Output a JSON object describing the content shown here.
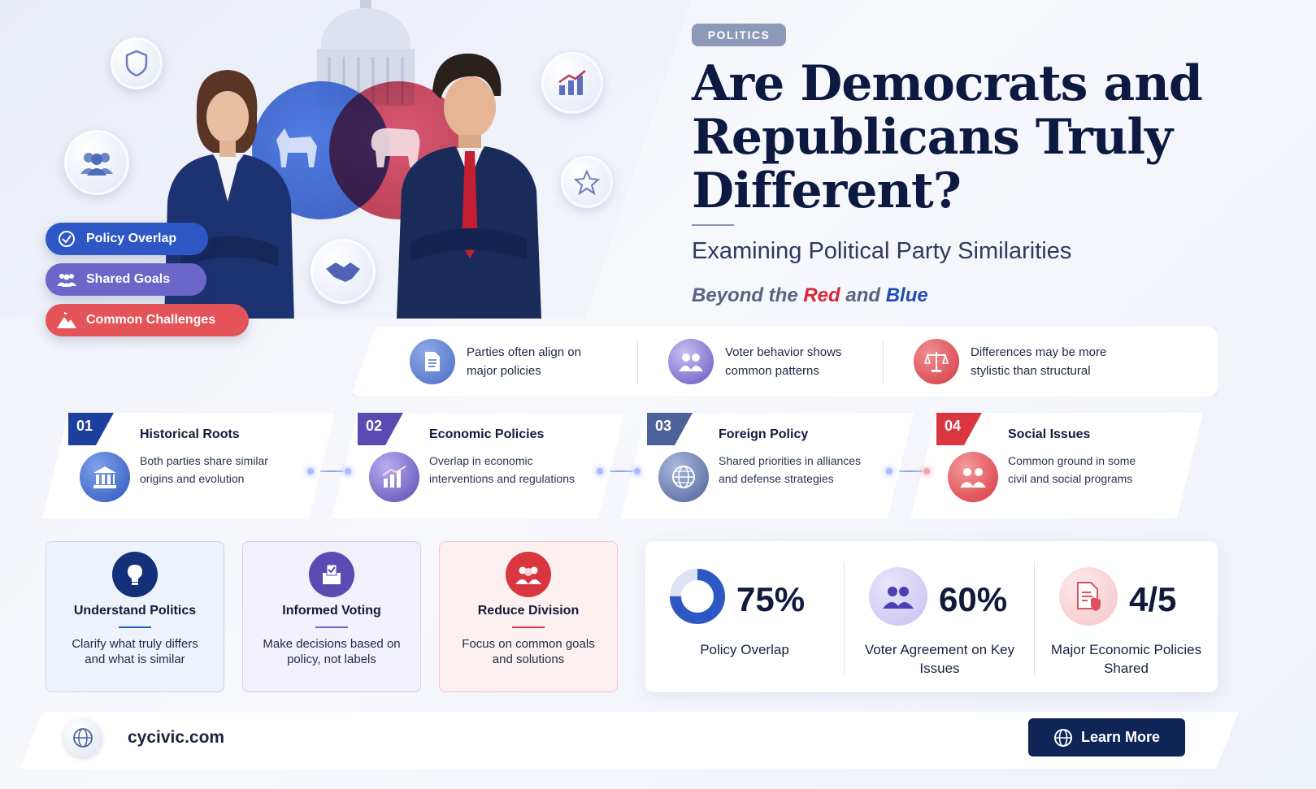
{
  "hero": {
    "pills": [
      {
        "label": "Policy Overlap",
        "color": "#2d57c4"
      },
      {
        "label": "Shared Goals",
        "color": "#6b66c8"
      },
      {
        "label": "Common Challenges",
        "color": "#e35358"
      }
    ]
  },
  "header": {
    "tag": "POLITICS",
    "title": "Are Democrats and Republicans Truly Different?",
    "subtitle": "Examining Political Party Similarities",
    "tagline_prefix": "Beyond the ",
    "tagline_red": "Red",
    "tagline_mid": " and ",
    "tagline_blue": "Blue"
  },
  "facts": [
    {
      "text": "Parties often align on major policies",
      "icon": "document-icon"
    },
    {
      "text": "Voter behavior shows common patterns",
      "icon": "voters-icon"
    },
    {
      "text": "Differences may be more stylistic than structural",
      "icon": "scales-icon"
    }
  ],
  "steps": [
    {
      "num": "01",
      "title": "Historical Roots",
      "desc": "Both parties share similar origins and evolution",
      "color": "#1d3f9e"
    },
    {
      "num": "02",
      "title": "Economic Policies",
      "desc": "Overlap in economic interventions and regulations",
      "color": "#5a4bb3"
    },
    {
      "num": "03",
      "title": "Foreign Policy",
      "desc": "Shared priorities in alliances and defense strategies",
      "color": "#4c6298"
    },
    {
      "num": "04",
      "title": "Social Issues",
      "desc": "Common ground in some civil and social programs",
      "color": "#d9363f"
    }
  ],
  "benefits": [
    {
      "title": "Understand Politics",
      "desc": "Clarify what truly differs and what is similar"
    },
    {
      "title": "Informed Voting",
      "desc": "Make decisions based on policy, not labels"
    },
    {
      "title": "Reduce Division",
      "desc": "Focus on common goals and solutions"
    }
  ],
  "stats": [
    {
      "value": "75%",
      "label": "Policy Overlap",
      "fraction": 0.75
    },
    {
      "value": "60%",
      "label": "Voter Agreement on Key Issues"
    },
    {
      "value": "4/5",
      "label": "Major Economic Policies Shared"
    }
  ],
  "footer": {
    "site": "cycivic.com",
    "cta": "Learn More"
  }
}
